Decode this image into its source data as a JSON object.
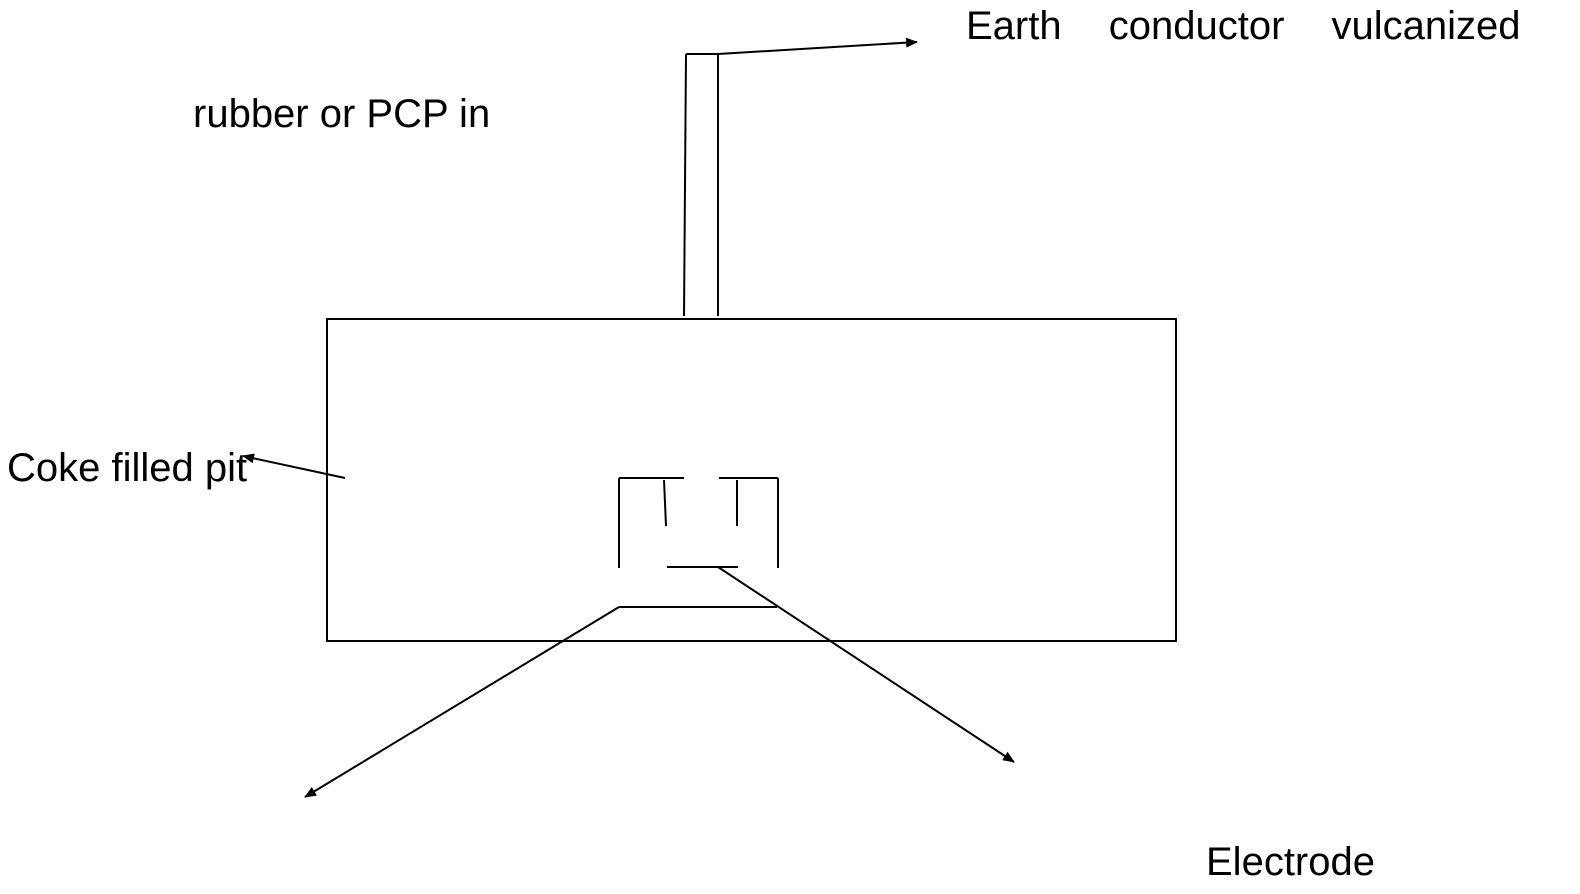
{
  "labels": {
    "earth_conductor": "Earth conductor vulcanized",
    "rubber": "rubber or PCP in",
    "coke_pit": "Coke filled pit",
    "electrode": "Electrode"
  },
  "colors": {
    "stroke": "#000000",
    "background": "#ffffff"
  }
}
